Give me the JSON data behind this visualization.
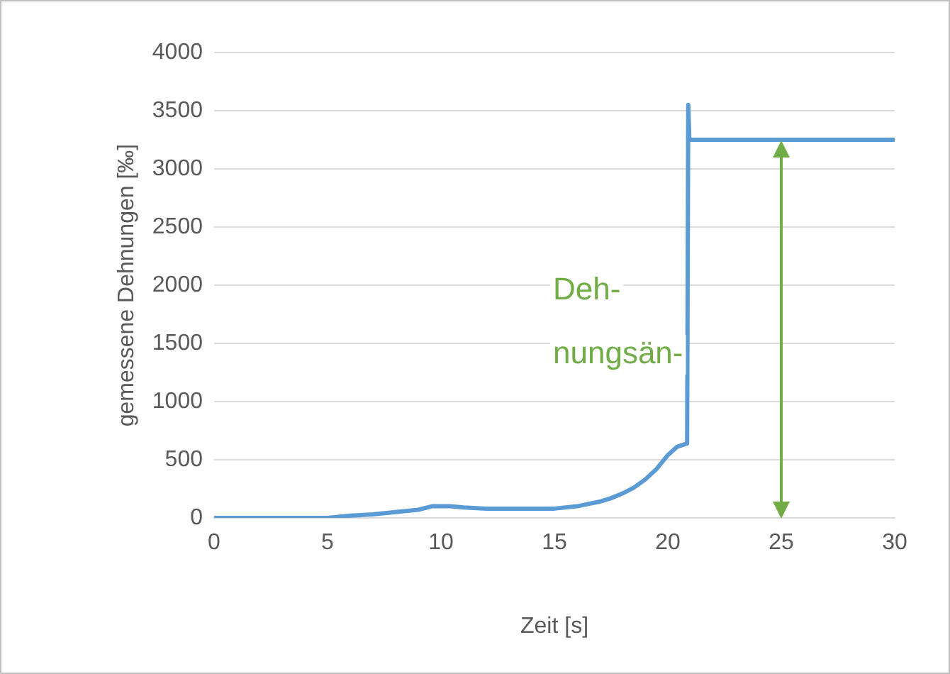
{
  "chart_data": {
    "type": "line",
    "xlabel": "Zeit [s]",
    "ylabel": "gemessene Dehnungen [‰]",
    "xlim": [
      0,
      30
    ],
    "xticks": [
      0,
      5,
      10,
      15,
      20,
      25,
      30
    ],
    "ylim": [
      0,
      4000
    ],
    "yticks": [
      0,
      500,
      1000,
      1500,
      2000,
      2500,
      3000,
      3500,
      4000
    ],
    "grid": "y",
    "legend": false,
    "marker": "none",
    "line_style": "solid",
    "series": [
      {
        "color": "#5b9bd5",
        "x": [
          0,
          2,
          4,
          5,
          6,
          7,
          8,
          9,
          9.6,
          10.4,
          11,
          12,
          13,
          14,
          15,
          16,
          17,
          17.5,
          18,
          18.5,
          19,
          19.5,
          20,
          20.4,
          20.7,
          20.85,
          20.9,
          20.95,
          21.2,
          25,
          30
        ],
        "values": [
          0,
          0,
          0,
          0,
          20,
          30,
          50,
          70,
          100,
          100,
          90,
          80,
          80,
          80,
          80,
          100,
          140,
          170,
          210,
          260,
          330,
          420,
          540,
          610,
          630,
          640,
          3550,
          3250,
          3250,
          3250,
          3250
        ]
      }
    ],
    "annotations": [
      "Deh-\nnungsän-"
    ]
  }
}
